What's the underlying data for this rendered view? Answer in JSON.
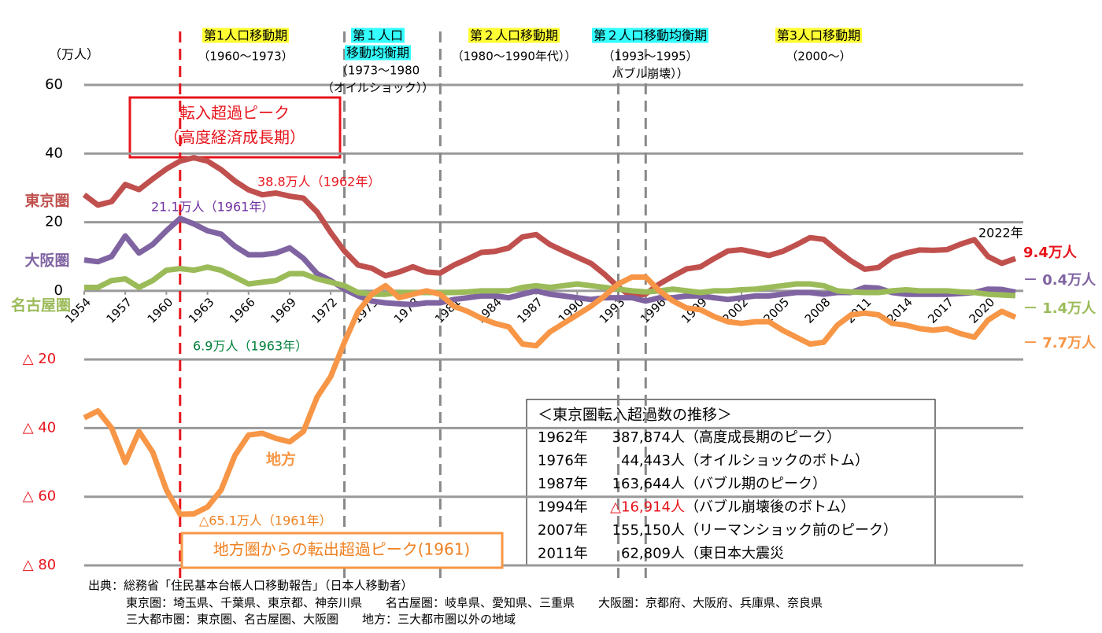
{
  "chart_data": {
    "type": "line",
    "unit_label": "（万人）",
    "x": [
      1954,
      1955,
      1956,
      1957,
      1958,
      1959,
      1960,
      1961,
      1962,
      1963,
      1964,
      1965,
      1966,
      1967,
      1968,
      1969,
      1970,
      1971,
      1972,
      1973,
      1974,
      1975,
      1976,
      1977,
      1978,
      1979,
      1980,
      1981,
      1982,
      1983,
      1984,
      1985,
      1986,
      1987,
      1988,
      1989,
      1990,
      1991,
      1992,
      1993,
      1994,
      1995,
      1996,
      1997,
      1998,
      1999,
      2000,
      2001,
      2002,
      2003,
      2004,
      2005,
      2006,
      2007,
      2008,
      2009,
      2010,
      2011,
      2012,
      2013,
      2014,
      2015,
      2016,
      2017,
      2018,
      2019,
      2020,
      2021,
      2022
    ],
    "xlim": [
      1954,
      2022
    ],
    "xticks": [
      1954,
      1957,
      1960,
      1963,
      1966,
      1969,
      1972,
      1975,
      1978,
      1981,
      1984,
      1987,
      1990,
      1993,
      1996,
      1999,
      2002,
      2005,
      2008,
      2011,
      2014,
      2017,
      2020
    ],
    "ylim": [
      -80,
      60
    ],
    "yticks": [
      60,
      40,
      20,
      0,
      {
        "value": -20,
        "label": "△ 20"
      },
      {
        "value": -40,
        "label": "△ 40"
      },
      {
        "value": -60,
        "label": "△ 60"
      },
      {
        "value": -80,
        "label": "△ 80"
      }
    ],
    "grid": true,
    "series": [
      {
        "name": "東京圏",
        "color": "#c0504d",
        "end_label": "9.4万人",
        "values": [
          28,
          25,
          26,
          31,
          29.5,
          32.6,
          35.5,
          37.8,
          38.8,
          37.8,
          35.3,
          32,
          29.4,
          28,
          28.5,
          27.6,
          27,
          23,
          17,
          11.6,
          7.5,
          6.6,
          4.4,
          5.5,
          7,
          5.5,
          5.2,
          7.5,
          9.3,
          11.2,
          11.5,
          12.5,
          15.7,
          16.4,
          13.5,
          11.6,
          9.8,
          8,
          4.8,
          1.1,
          -1.7,
          -0.9,
          2,
          4.3,
          6.4,
          7,
          9.4,
          11.6,
          12,
          11.2,
          10.3,
          11.5,
          13.4,
          15.5,
          15,
          11.7,
          8.7,
          6.3,
          6.8,
          9.7,
          11,
          11.9,
          11.8,
          12,
          13.6,
          14.9,
          10,
          8,
          9.4
        ]
      },
      {
        "name": "大阪圏",
        "color": "#8064a2",
        "end_label": "－ 0.4万人",
        "values": [
          9,
          8.5,
          10,
          16,
          11,
          13.5,
          17.5,
          21.1,
          19.5,
          17.5,
          16.5,
          13,
          10.5,
          10.5,
          11,
          12.5,
          9.5,
          5,
          3,
          0.5,
          -1.5,
          -3,
          -3.5,
          -3.8,
          -4,
          -3.5,
          -3.5,
          -2.5,
          -2,
          -1.5,
          -1.5,
          -2,
          -1,
          0,
          -1,
          -1.5,
          -2,
          -2.5,
          -2,
          -2,
          -2,
          -3,
          -2,
          -2,
          -1.5,
          -1.5,
          -2,
          -2.5,
          -2,
          -1.5,
          -1.5,
          -1,
          -0.5,
          -0.5,
          -1,
          -0.5,
          -0.5,
          1,
          0.8,
          -0.5,
          -1,
          -1,
          -1,
          -1,
          -0.8,
          -0.5,
          0.5,
          0.4,
          -0.4
        ]
      },
      {
        "name": "名古屋圏",
        "color": "#9bbb59",
        "end_label": "－ 1.4万人",
        "values": [
          1,
          1,
          3,
          3.5,
          1,
          3,
          6,
          6.5,
          6,
          6.9,
          6,
          4,
          2,
          2.5,
          3,
          5,
          5,
          3.5,
          2.5,
          1.5,
          -0.5,
          -1,
          -1,
          -0.5,
          -0.5,
          -0.5,
          -0.5,
          -0.5,
          -0.3,
          0,
          0,
          0,
          1,
          1.5,
          1,
          1.5,
          2,
          1.5,
          1,
          0.5,
          0,
          -0.3,
          0,
          0.5,
          0,
          -0.5,
          0,
          0,
          0.3,
          0.5,
          1,
          1.5,
          2,
          2,
          1.5,
          0,
          -0.3,
          -0.5,
          -0.5,
          0,
          0.3,
          0,
          0,
          0,
          -0.3,
          -0.5,
          -1,
          -1.2,
          -1.4
        ]
      },
      {
        "name": "地方",
        "color": "#f79646",
        "end_label": "－ 7.7万人",
        "values": [
          -37,
          -35,
          -40,
          -50,
          -41,
          -47,
          -58,
          -65.1,
          -65,
          -63,
          -58,
          -48,
          -42,
          -41.5,
          -43,
          -44,
          -41,
          -31,
          -25,
          -15,
          -6,
          -1,
          1.5,
          -2,
          -1,
          0,
          -1,
          -4.5,
          -6,
          -8,
          -9.5,
          -10.5,
          -15.5,
          -16,
          -12,
          -9.5,
          -7,
          -4.5,
          -1.5,
          2,
          4,
          4,
          0,
          -3,
          -5,
          -5.5,
          -7.5,
          -9,
          -9.5,
          -9,
          -9,
          -11.5,
          -13.5,
          -15.5,
          -15,
          -10,
          -7,
          -6.5,
          -7,
          -9.5,
          -10,
          -11,
          -11.5,
          -11,
          -12.5,
          -13.5,
          -8.5,
          -6,
          -7.7
        ]
      }
    ],
    "annotations": [
      "38.8万人（1962年）",
      "21.1万人（1961年）",
      "6.9万人（1963年）",
      "△65.1万人（1961年）",
      "2022年"
    ],
    "period_lines": [
      {
        "x": 1961,
        "color": "#e8141c"
      },
      {
        "x": 1973,
        "color": "#888888"
      },
      {
        "x": 1980,
        "color": "#888888"
      },
      {
        "x": 1993,
        "color": "#888888"
      },
      {
        "x": 1995,
        "color": "#888888"
      }
    ],
    "periods": [
      {
        "title": [
          "第1人口移動期"
        ],
        "highlight": "#ffff33",
        "sub": [
          "（1960～1973）"
        ]
      },
      {
        "title": [
          "第１人口",
          "移動均衡期"
        ],
        "highlight": "#33ffff",
        "sub": [
          "（1973～1980",
          "（オイルショック））"
        ]
      },
      {
        "title": [
          "第２人口移動期"
        ],
        "highlight": "#ffff33",
        "sub": [
          "（1980～1990年代））"
        ]
      },
      {
        "title": [
          "第２人口移動均衡期"
        ],
        "highlight": "#33ffff",
        "sub": [
          "（1993～1995）",
          "バブル崩壊））"
        ]
      },
      {
        "title": [
          "第3人口移動期"
        ],
        "highlight": "#ffff33",
        "sub": [
          "（2000～）"
        ]
      }
    ],
    "peak_box": [
      "転入超過ピーク",
      "（高度経済成長期）"
    ],
    "outflow_box": "地方圏からの転出超過ピーク(1961)",
    "table": {
      "title": "＜東京圏転入超過数の推移＞",
      "rows": [
        [
          "1962年",
          "387,874人",
          "（高度成長期のピーク）"
        ],
        [
          "1976年",
          "44,443人",
          "（オイルショックのボトム）"
        ],
        [
          "1987年",
          "163,644人",
          "（バブル期のピーク）"
        ],
        [
          "1994年",
          "△16,914人",
          "（バブル崩壊後のボトム）"
        ],
        [
          "2007年",
          "155,150人",
          "（リーマンショック前のピーク）"
        ],
        [
          "2011年",
          "62,809人",
          "（東日本大震災"
        ]
      ]
    },
    "source": [
      "出典：総務省「住民基本台帳人口移動報告」（日本人移動者）",
      "東京圏：埼玉県、千葉県、東京都、神奈川県　　名古屋圏：岐阜県、愛知県、三重県　　大阪圏：京都府、大阪府、兵庫県、奈良県",
      "三大都市圏：東京圏、名古屋圏、大阪圏　　地方：三大都市圏以外の地域"
    ]
  }
}
